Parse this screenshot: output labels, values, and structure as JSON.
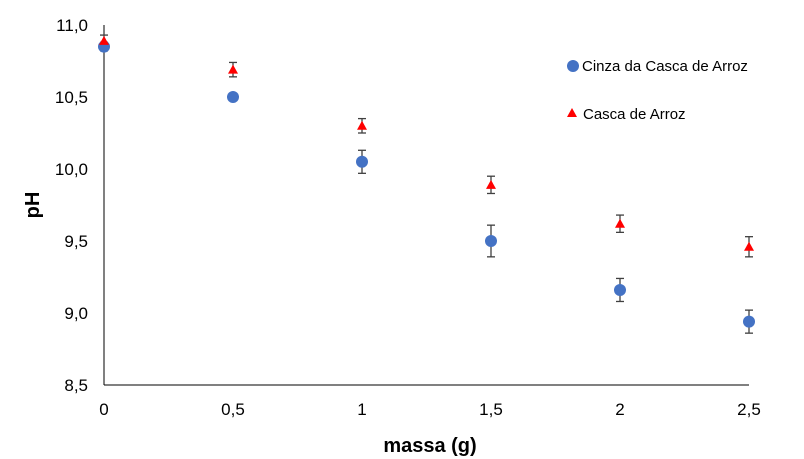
{
  "chart_data": {
    "type": "scatter",
    "xlabel": "massa (g)",
    "ylabel": "pH",
    "xlim": [
      0,
      2.5
    ],
    "ylim": [
      8.5,
      11.0
    ],
    "x_ticks": [
      "0",
      "0,5",
      "1",
      "1,5",
      "2",
      "2,5"
    ],
    "y_ticks": [
      "8,5",
      "9,0",
      "9,5",
      "10,0",
      "10,5",
      "11,0"
    ],
    "grid": false,
    "legend_position": "top-right",
    "series": [
      {
        "name": "Cinza da Casca de Arroz",
        "marker": "circle",
        "color": "#4472c4",
        "x": [
          0,
          0.5,
          1,
          1.5,
          2,
          2.5
        ],
        "y": [
          10.85,
          10.5,
          10.05,
          9.5,
          9.16,
          8.94
        ],
        "err": [
          0.03,
          0.0,
          0.08,
          0.11,
          0.08,
          0.08
        ]
      },
      {
        "name": "Casca de Arroz",
        "marker": "triangle",
        "color": "#ff0000",
        "x": [
          0,
          0.5,
          1,
          1.5,
          2,
          2.5
        ],
        "y": [
          10.89,
          10.69,
          10.3,
          9.89,
          9.62,
          9.46
        ],
        "err": [
          0.04,
          0.05,
          0.05,
          0.06,
          0.06,
          0.07
        ]
      }
    ]
  }
}
